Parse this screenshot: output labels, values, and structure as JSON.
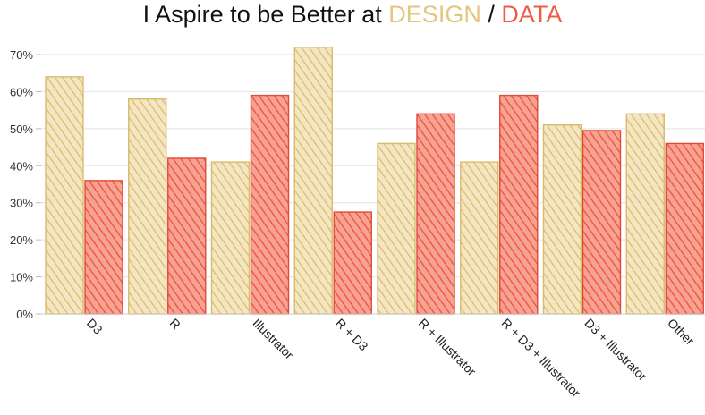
{
  "title": {
    "prefix": "I Aspire to be Better at ",
    "word_a": "DESIGN",
    "separator": " / ",
    "word_b": "DATA"
  },
  "chart_data": {
    "type": "bar",
    "title": "I Aspire to be Better at DESIGN / DATA",
    "xlabel": "",
    "ylabel": "",
    "ylim": [
      0,
      70
    ],
    "y_ticks": [
      "0%",
      "10%",
      "20%",
      "30%",
      "40%",
      "50%",
      "60%",
      "70%"
    ],
    "grid": true,
    "categories": [
      "D3",
      "R",
      "Illustrator",
      "R + D3",
      "R + Illustrator",
      "R + D3 + Illustrator",
      "D3 + Illustrator",
      "Other"
    ],
    "series": [
      {
        "name": "DESIGN",
        "color": "#e3c67f",
        "values": [
          64,
          58,
          41,
          72,
          46,
          41,
          51,
          54
        ]
      },
      {
        "name": "DATA",
        "color": "#f05a45",
        "values": [
          36,
          42,
          59,
          27.5,
          54,
          59,
          49.5,
          46
        ]
      }
    ]
  }
}
